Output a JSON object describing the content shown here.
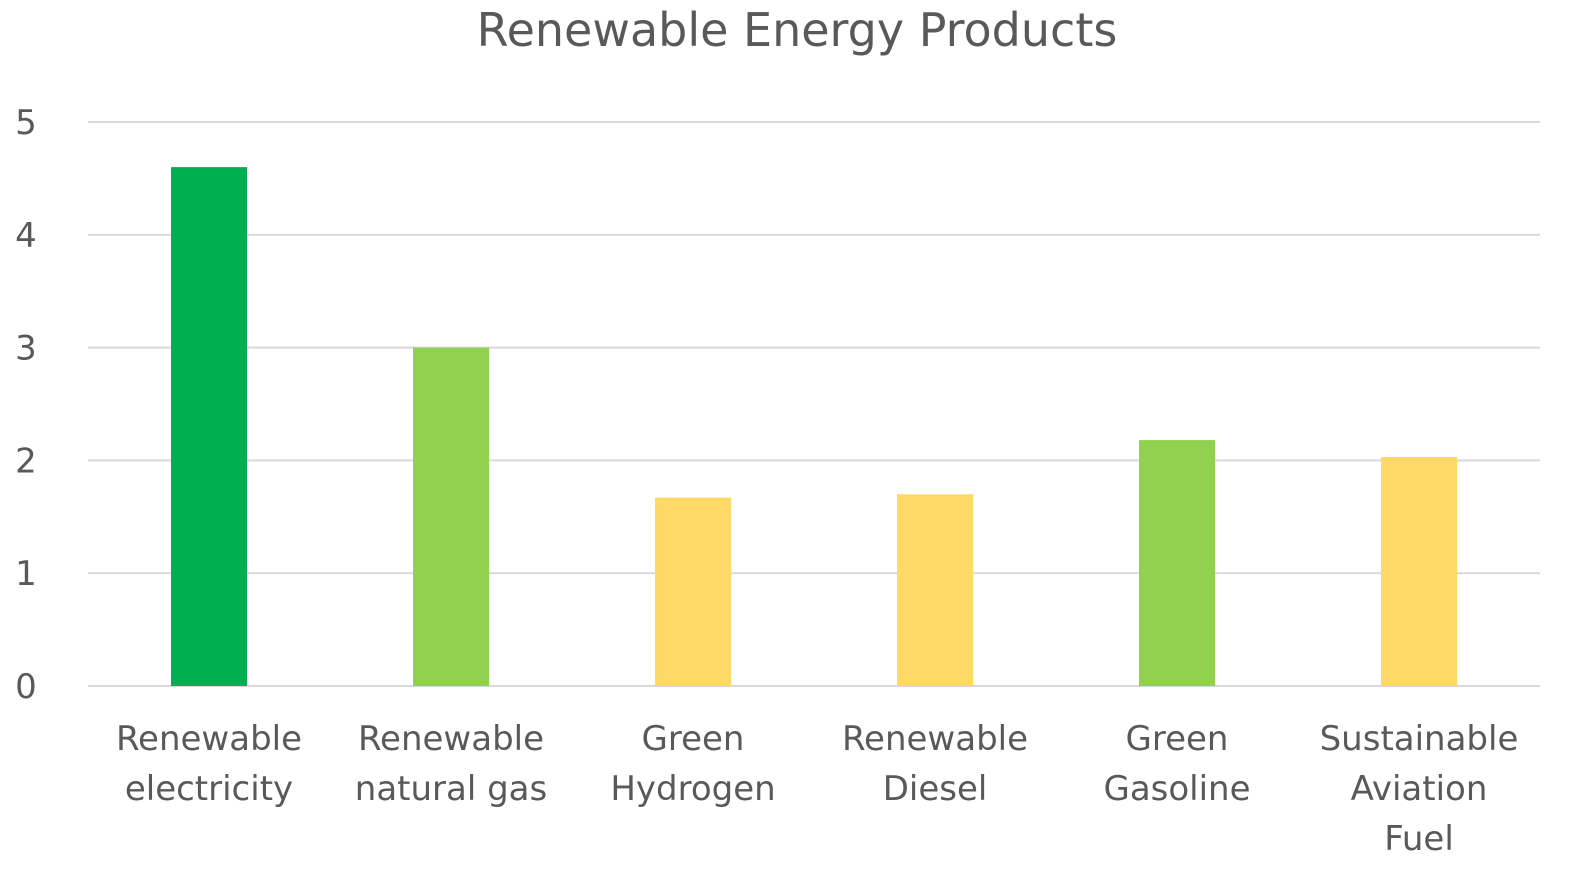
{
  "chart_data": {
    "type": "bar",
    "title": "Renewable Energy Products",
    "xlabel": "",
    "ylabel": "",
    "ylim": [
      0,
      5
    ],
    "yticks": [
      "0",
      "1",
      "2",
      "3",
      "4",
      "5"
    ],
    "grid": true,
    "legend": "none",
    "categories": [
      [
        "Renewable",
        "electricity"
      ],
      [
        "Renewable",
        "natural gas"
      ],
      [
        "Green",
        "Hydrogen"
      ],
      [
        "Renewable",
        "Diesel"
      ],
      [
        "Green",
        "Gasoline"
      ],
      [
        "Sustainable",
        "Aviation",
        "Fuel"
      ]
    ],
    "values": [
      4.6,
      3.0,
      1.67,
      1.7,
      2.18,
      2.03
    ],
    "bar_colors": [
      "#00b050",
      "#92d050",
      "#ffd966",
      "#ffd966",
      "#92d050",
      "#ffd966"
    ],
    "colors": {
      "grid": "#d9d9d9",
      "text": "#595959",
      "background": "#ffffff"
    }
  }
}
